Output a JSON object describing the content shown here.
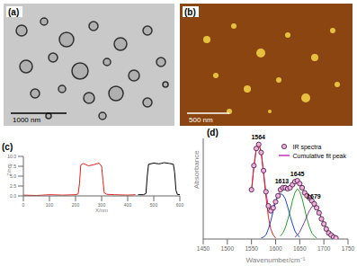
{
  "panels": [
    {
      "label": "(a)",
      "type": "image",
      "scale_bar": "1000 nm"
    },
    {
      "label": "(b)",
      "type": "image",
      "scale_bar": "500 nm"
    }
  ],
  "chart_data": [
    {
      "type": "line",
      "title": "(c)",
      "x_label": "X/nm",
      "y_label": "Z/nm",
      "xlim": [
        0,
        600
      ],
      "xticks": [
        0,
        100,
        200,
        300,
        400,
        500,
        600
      ],
      "ylim": [
        0,
        10
      ],
      "yticks": [
        {
          "value": 0,
          "label": "0.0"
        },
        {
          "value": 2.5,
          "label": "2.5"
        },
        {
          "value": 5,
          "label": "5.0"
        },
        {
          "value": 7.5,
          "label": "7.5"
        },
        {
          "value": 10,
          "label": "10.0"
        }
      ],
      "series": [
        {
          "color": "#e0201b",
          "x": [
            0,
            50,
            100,
            150,
            200,
            210,
            215,
            220,
            230,
            250,
            270,
            290,
            300,
            305,
            310,
            320,
            350,
            400,
            430
          ],
          "values": [
            0.2,
            0.1,
            0.3,
            0.2,
            0.3,
            0.5,
            3,
            7.8,
            8.2,
            7.6,
            7.9,
            8.3,
            7.5,
            4,
            0.8,
            0.4,
            0.3,
            0.2,
            0.3
          ]
        },
        {
          "color": "#000000",
          "x": [
            440,
            460,
            470,
            475,
            480,
            500,
            520,
            540,
            560,
            575,
            580,
            585,
            590,
            600
          ],
          "values": [
            0.3,
            0.3,
            0.6,
            5,
            8,
            8.3,
            8.1,
            8.4,
            8.2,
            8,
            6,
            1.5,
            0.4,
            0.3
          ]
        }
      ]
    },
    {
      "type": "line",
      "title": "(d)",
      "x_label": "Wavenumber/cm⁻¹",
      "y_label": "Absorbance",
      "xlim": [
        1450,
        1750
      ],
      "xticks": [
        1450,
        1500,
        1550,
        1600,
        1650,
        1700,
        1750
      ],
      "ylim": [
        0,
        1
      ],
      "tick_labels": "x",
      "legend": "upper right",
      "x": [
        1550,
        1555,
        1560,
        1565,
        1570,
        1575,
        1580,
        1585,
        1590,
        1595,
        1600,
        1605,
        1610,
        1615,
        1620,
        1625,
        1630,
        1635,
        1640,
        1645,
        1650,
        1655,
        1660,
        1665,
        1670,
        1675,
        1680,
        1685,
        1690,
        1695,
        1700,
        1705,
        1710,
        1715,
        1720,
        1725
      ],
      "series": [
        {
          "name": "IR spectra",
          "type": "scatter",
          "marker": "circle",
          "color": "#3a1030",
          "values": [
            0.49,
            0.73,
            0.9,
            0.94,
            0.86,
            0.68,
            0.47,
            0.33,
            0.28,
            0.31,
            0.37,
            0.43,
            0.49,
            0.51,
            0.51,
            0.5,
            0.51,
            0.54,
            0.57,
            0.58,
            0.55,
            0.51,
            0.46,
            0.43,
            0.41,
            0.38,
            0.35,
            0.31,
            0.26,
            0.2,
            0.15,
            0.1,
            0.06,
            0.04,
            0.02,
            0.01
          ]
        },
        {
          "name": "Cumulative fit peak",
          "type": "line",
          "color": "#c030c0",
          "values": [
            0.48,
            0.72,
            0.9,
            0.95,
            0.87,
            0.67,
            0.46,
            0.32,
            0.28,
            0.32,
            0.38,
            0.43,
            0.48,
            0.5,
            0.51,
            0.51,
            0.51,
            0.53,
            0.56,
            0.58,
            0.56,
            0.52,
            0.47,
            0.43,
            0.4,
            0.38,
            0.36,
            0.32,
            0.27,
            0.21,
            0.15,
            0.1,
            0.06,
            0.03,
            0.02,
            0.01
          ]
        },
        {
          "type": "line",
          "color": "#e0201b",
          "values": [
            0.48,
            0.72,
            0.9,
            0.95,
            0.86,
            0.65,
            0.42,
            0.22,
            0.1,
            0.04,
            0.01,
            null,
            null,
            null,
            null,
            null,
            null,
            null,
            null,
            null,
            null,
            null,
            null,
            null,
            null,
            null,
            null,
            null,
            null,
            null,
            null,
            null,
            null,
            null,
            null,
            null
          ]
        },
        {
          "type": "line",
          "color": "#1f3fd0",
          "values": [
            null,
            null,
            null,
            null,
            0.01,
            0.02,
            0.04,
            0.1,
            0.18,
            0.28,
            0.37,
            0.43,
            0.45,
            0.44,
            0.4,
            0.32,
            0.23,
            0.15,
            0.08,
            0.04,
            0.02,
            null,
            null,
            null,
            null,
            null,
            null,
            null,
            null,
            null,
            null,
            null,
            null,
            null,
            null,
            null
          ]
        },
        {
          "type": "line",
          "color": "#2a9a2a",
          "values": [
            null,
            null,
            null,
            null,
            null,
            null,
            null,
            null,
            null,
            null,
            null,
            null,
            0.03,
            0.06,
            0.11,
            0.19,
            0.28,
            0.38,
            0.46,
            0.5,
            0.47,
            0.4,
            0.3,
            0.2,
            0.12,
            0.06,
            0.03,
            0.01,
            null,
            null,
            null,
            null,
            null,
            null,
            null,
            null
          ]
        },
        {
          "type": "line",
          "color": "#8040a0",
          "values": [
            null,
            null,
            null,
            null,
            null,
            null,
            null,
            null,
            null,
            null,
            null,
            null,
            null,
            null,
            null,
            null,
            null,
            null,
            0.02,
            0.04,
            0.07,
            0.12,
            0.17,
            0.23,
            0.28,
            0.32,
            0.33,
            0.31,
            0.27,
            0.21,
            0.15,
            0.1,
            0.06,
            0.03,
            0.02,
            0.01
          ]
        }
      ],
      "peaks": [
        1564,
        1613,
        1645,
        1679
      ]
    }
  ]
}
